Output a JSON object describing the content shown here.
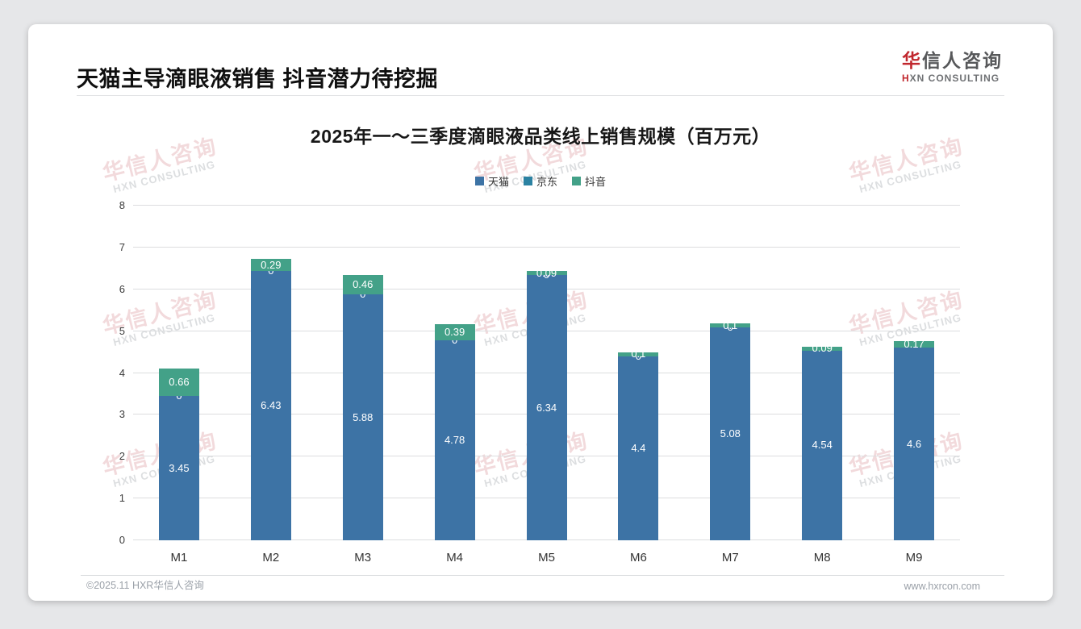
{
  "page": {
    "title": "天猫主导滴眼液销售 抖音潜力待挖掘",
    "logo": {
      "cn_first": "华",
      "cn_rest": "信人咨询",
      "en_first": "H",
      "en_rest": "XN CONSULTING"
    },
    "watermark": {
      "cn": "华信人咨询",
      "en": "HXN CONSULTING"
    },
    "footer": {
      "left": "©2025.11 HXR华信人咨询",
      "right": "www.hxrcon.com"
    }
  },
  "chart_data": {
    "type": "bar",
    "stacked": true,
    "title": "2025年一～三季度滴眼液品类线上销售规模（百万元）",
    "categories": [
      "M1",
      "M2",
      "M3",
      "M4",
      "M5",
      "M6",
      "M7",
      "M8",
      "M9"
    ],
    "series": [
      {
        "key": "tmall",
        "name": "天猫",
        "color": "#3D73A5",
        "values": [
          3.45,
          6.43,
          5.88,
          4.78,
          6.34,
          4.4,
          5.08,
          4.54,
          4.6
        ]
      },
      {
        "key": "jd",
        "name": "京东",
        "color": "#2B82A2",
        "values": [
          0,
          0,
          0,
          0,
          0,
          0,
          0,
          0,
          0
        ],
        "labels_visible": [
          true,
          true,
          true,
          true,
          true,
          true,
          true,
          false,
          false
        ]
      },
      {
        "key": "douyin",
        "name": "抖音",
        "color": "#43A188",
        "values": [
          0.66,
          0.29,
          0.46,
          0.39,
          0.09,
          0.1,
          0.1,
          0.09,
          0.17
        ]
      }
    ],
    "xlabel": "",
    "ylabel": "",
    "ylim": [
      0,
      8
    ],
    "yticks": [
      0,
      1,
      2,
      3,
      4,
      5,
      6,
      7,
      8
    ],
    "grid": true,
    "legend_position": "top",
    "value_label_color": "#ffffff"
  },
  "colors": {
    "tmall": "#3D73A5",
    "jd": "#2B82A2",
    "douyin": "#43A188",
    "grid": "#DCDDDF",
    "logo_red": "#C1272D"
  }
}
